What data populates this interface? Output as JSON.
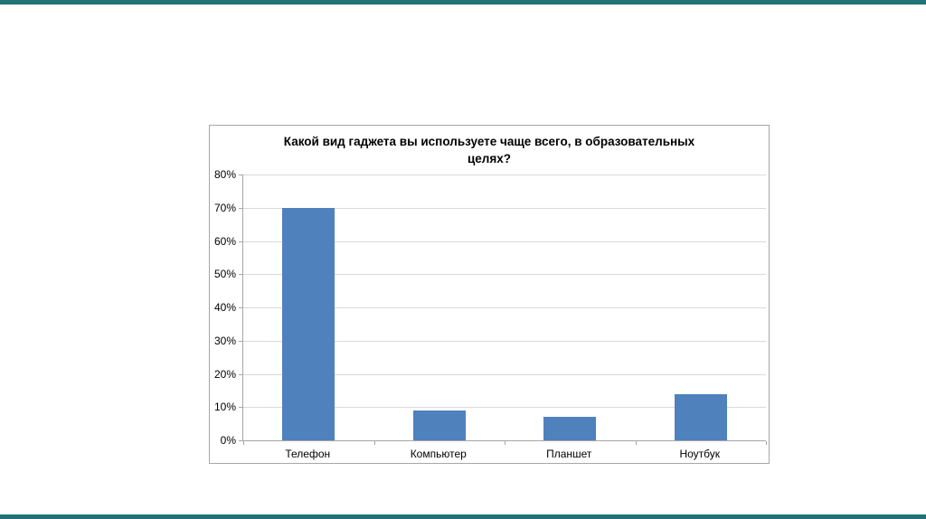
{
  "slide": {
    "background_color": "#ffffff",
    "accent_color": "#1f7377"
  },
  "chart_data": {
    "type": "bar",
    "title": "Какой вид гаджета вы используете чаще всего, в образовательных\nцелях?",
    "categories": [
      "Телефон",
      "Компьютер",
      "Планшет",
      "Ноутбук"
    ],
    "values": [
      70,
      9,
      7,
      14
    ],
    "value_unit": "%",
    "xlabel": "",
    "ylabel": "",
    "ylim": [
      0,
      80
    ],
    "ytick_step": 10,
    "ytick_labels": [
      "0%",
      "10%",
      "20%",
      "30%",
      "40%",
      "50%",
      "60%",
      "70%",
      "80%"
    ],
    "grid": true,
    "legend_position": "none",
    "bar_color": "#4f81bd",
    "gridline_color": "#d9d9d9",
    "axis_color": "#a6a6a6",
    "title_color": "#000000",
    "label_color": "#000000"
  }
}
